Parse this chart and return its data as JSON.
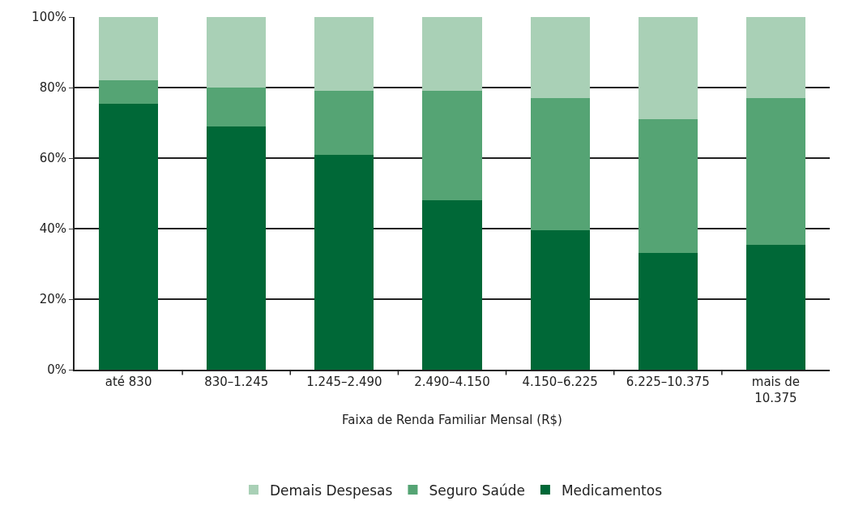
{
  "chart_data": {
    "type": "bar",
    "stacked": true,
    "xlabel": "Faixa de Renda Familiar Mensal (R$)",
    "categories": [
      "até 830",
      "830–1.245",
      "1.245–2.490",
      "2.490–4.150",
      "4.150–6.225",
      "6.225–10.375",
      "mais de 10.375"
    ],
    "series": [
      {
        "name": "Medicamentos",
        "color": "#006837",
        "values": [
          75.5,
          69,
          61,
          48,
          39.5,
          33,
          35.5
        ]
      },
      {
        "name": "Seguro Saúde",
        "color": "#55a474",
        "values": [
          6.5,
          11,
          18,
          31,
          37.5,
          38,
          41.5
        ]
      },
      {
        "name": "Demais Despesas",
        "color": "#a9d0b6",
        "values": [
          18,
          20,
          21,
          21,
          23,
          29,
          23
        ]
      }
    ],
    "ylim": [
      0,
      100
    ],
    "yticks": [
      {
        "value": 0,
        "label": "0%"
      },
      {
        "value": 20,
        "label": "20%"
      },
      {
        "value": 40,
        "label": "40%"
      },
      {
        "value": 60,
        "label": "60%"
      },
      {
        "value": 80,
        "label": "80%"
      },
      {
        "value": 100,
        "label": "100%"
      }
    ],
    "grid": "y",
    "legend": "bottom"
  }
}
